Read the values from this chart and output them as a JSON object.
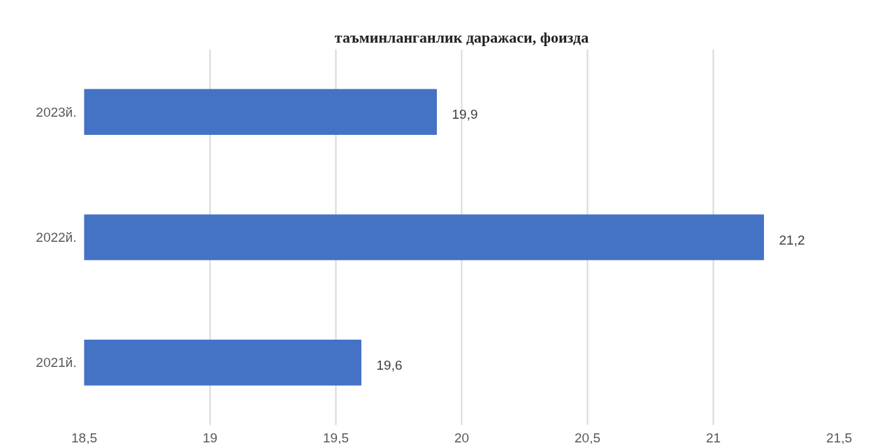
{
  "chart_data": {
    "type": "bar",
    "orientation": "horizontal",
    "title": "таъминланганлик даражаси, фоизда",
    "categories": [
      "2023й.",
      "2022й.",
      "2021й."
    ],
    "series": [
      {
        "color": "#4472c4",
        "values": [
          19.9,
          21.2,
          19.6
        ],
        "value_labels": [
          "19,9",
          "21,2",
          "19,6"
        ]
      }
    ],
    "xlim": [
      18.5,
      21.5
    ],
    "xticks": [
      {
        "value": 18.5,
        "label": "18,5"
      },
      19,
      {
        "value": 19.5,
        "label": "19,5"
      },
      20,
      {
        "value": 20.5,
        "label": "20,5"
      },
      21,
      {
        "value": 21.5,
        "label": "21,5"
      }
    ],
    "grid": "x"
  }
}
